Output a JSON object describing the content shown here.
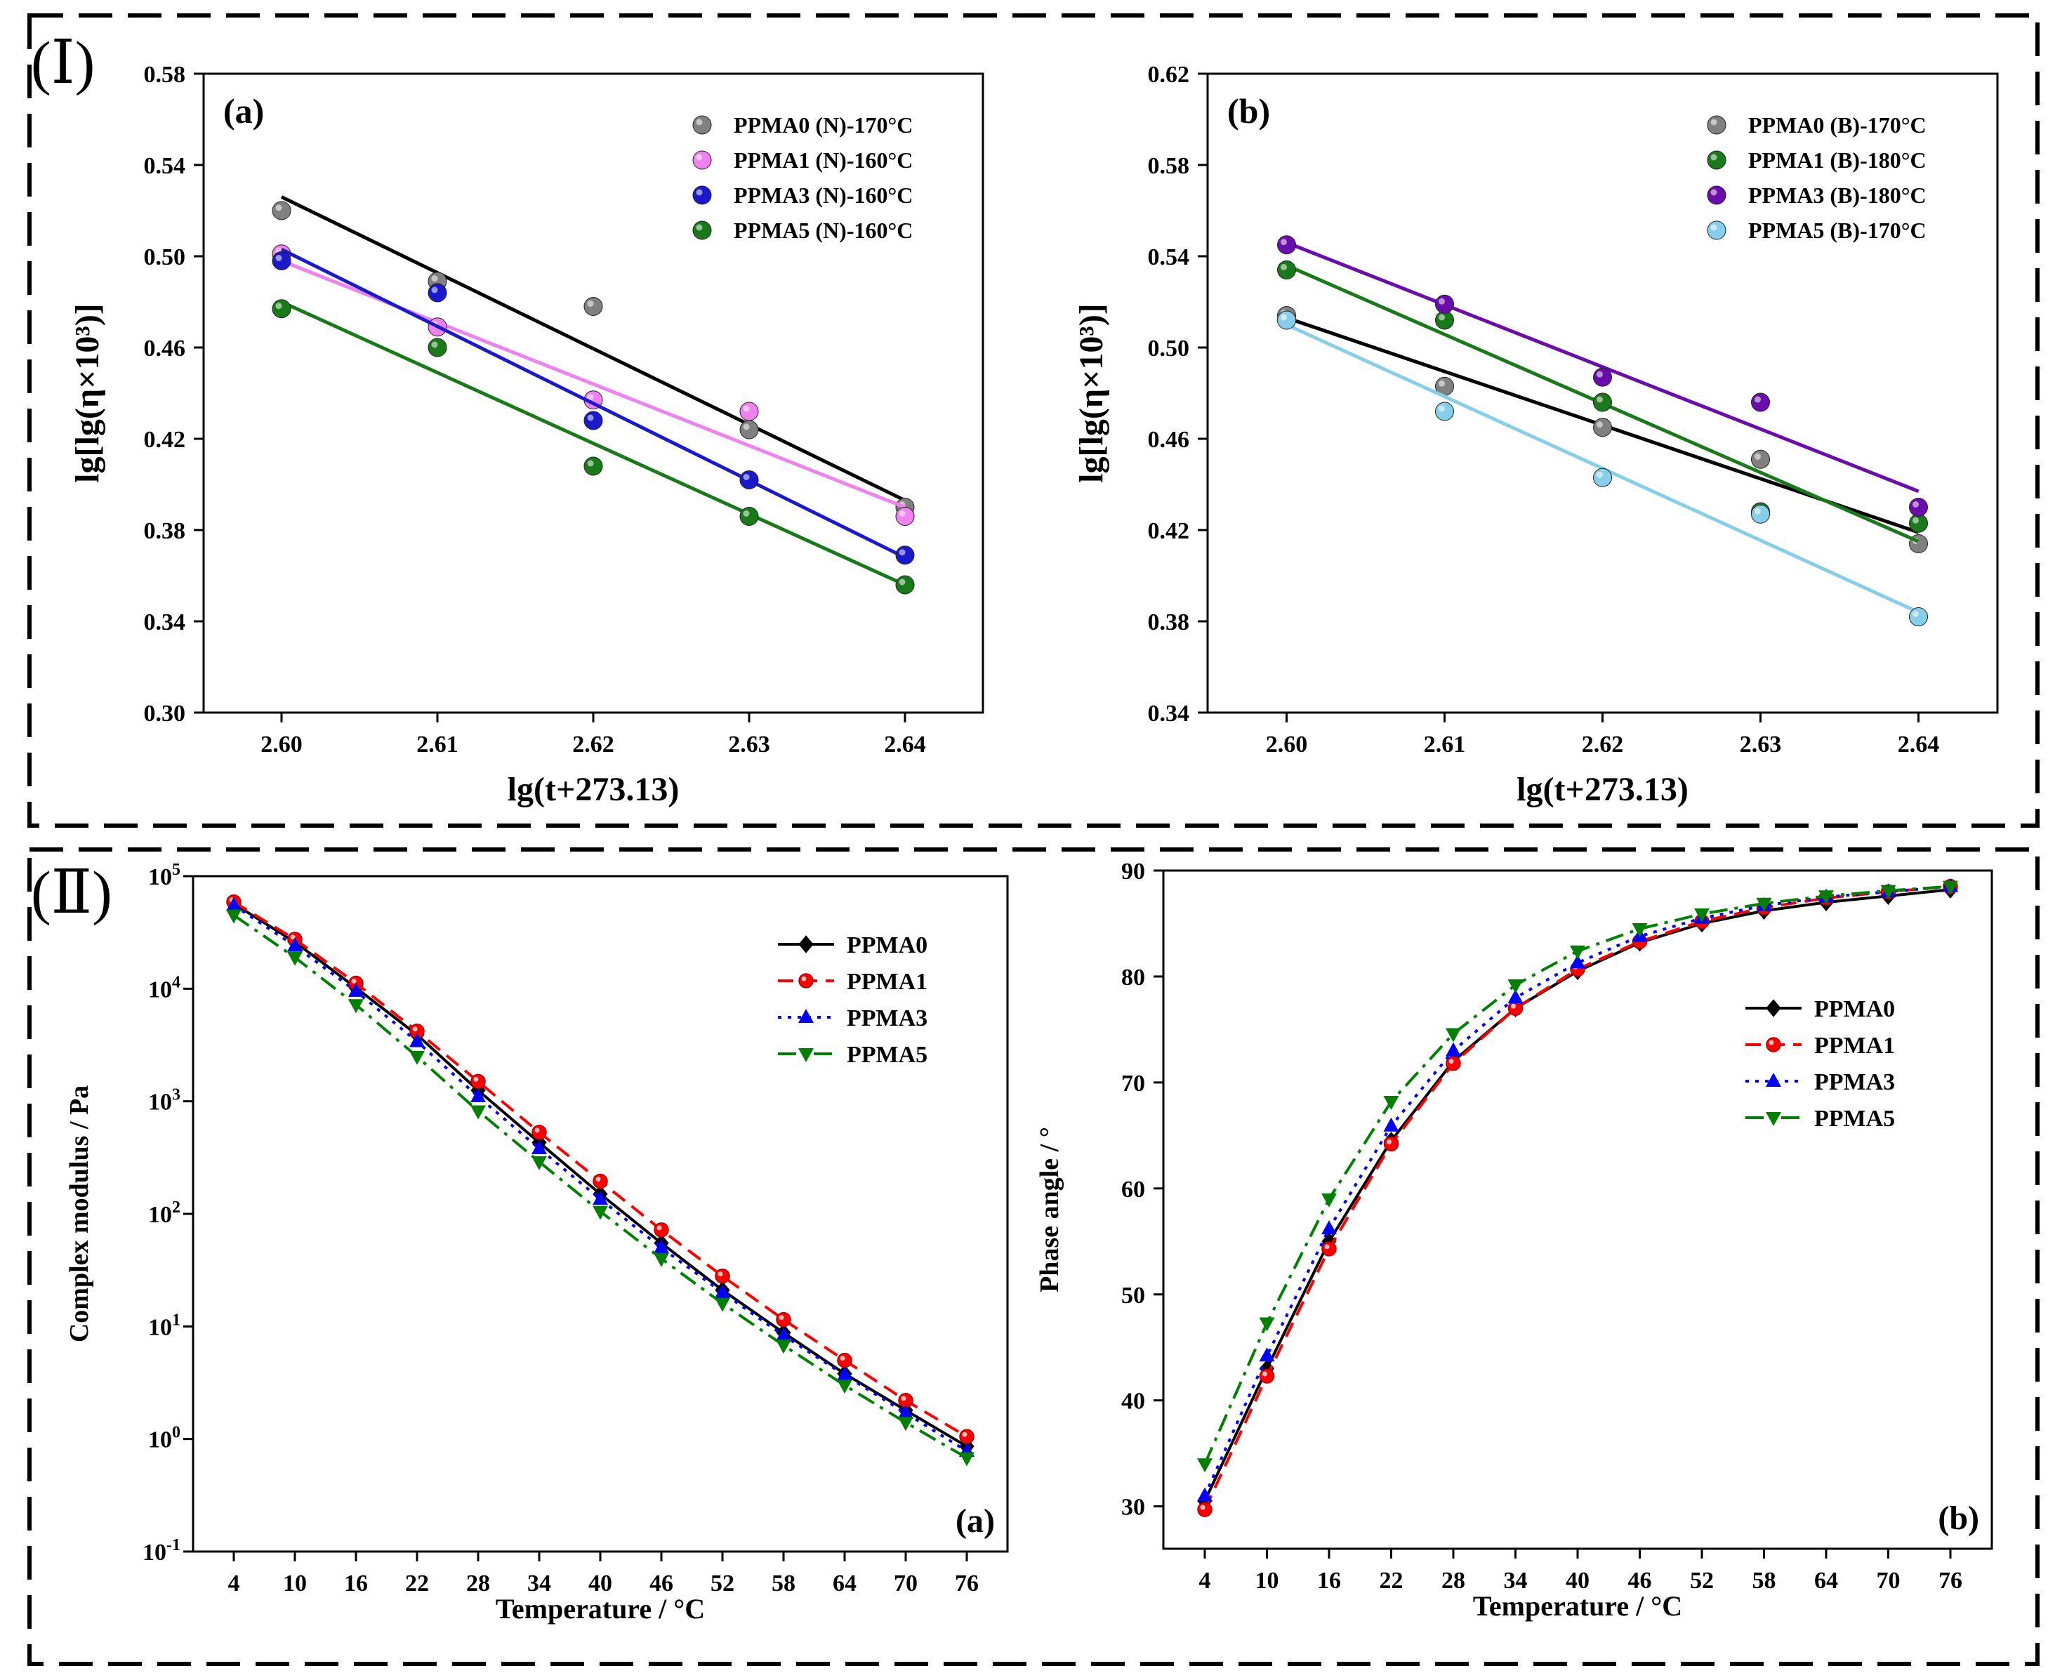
{
  "sections": [
    {
      "label": "(Ⅰ)"
    },
    {
      "label": "(Ⅱ)"
    }
  ],
  "colors": {
    "PPMA0": "#000000",
    "PPMA1": "#ff0000",
    "PPMA3": "#0000ff",
    "PPMA5": "#008000"
  },
  "chart_data": [
    {
      "id": "Ia",
      "type": "scatter",
      "panel_label": "(a)",
      "xlabel": "lg(t+273.13)",
      "ylabel": "lg[lg(η×10³)]",
      "xlim": [
        2.595,
        2.645
      ],
      "ylim": [
        0.3,
        0.58
      ],
      "xticks": [
        2.6,
        2.61,
        2.62,
        2.63,
        2.64
      ],
      "yticks": [
        0.3,
        0.34,
        0.38,
        0.42,
        0.46,
        0.5,
        0.54,
        0.58
      ],
      "x_decimals": 2,
      "y_decimals": 2,
      "legend_position": "top-right",
      "series": [
        {
          "name": "PPMA0 (N)-170°C",
          "color": "#808080",
          "line_color": "#000000",
          "x": [
            2.6,
            2.61,
            2.62,
            2.63,
            2.64
          ],
          "y": [
            0.52,
            0.489,
            0.478,
            0.424,
            0.39
          ],
          "fit": [
            [
              2.6,
              0.526
            ],
            [
              2.64,
              0.393
            ]
          ]
        },
        {
          "name": "PPMA1 (N)-160°C",
          "color": "#ee82ee",
          "line_color": "#ee82ee",
          "x": [
            2.6,
            2.61,
            2.62,
            2.63,
            2.64
          ],
          "y": [
            0.501,
            0.469,
            0.437,
            0.432,
            0.386
          ],
          "fit": [
            [
              2.6,
              0.498
            ],
            [
              2.64,
              0.39
            ]
          ]
        },
        {
          "name": "PPMA3 (N)-160°C",
          "color": "#1a1acc",
          "line_color": "#1a1acc",
          "x": [
            2.6,
            2.61,
            2.62,
            2.63,
            2.64
          ],
          "y": [
            0.498,
            0.484,
            0.428,
            0.402,
            0.369
          ],
          "fit": [
            [
              2.6,
              0.503
            ],
            [
              2.64,
              0.368
            ]
          ]
        },
        {
          "name": "PPMA5 (N)-160°C",
          "color": "#1a7a1a",
          "line_color": "#1a7a1a",
          "x": [
            2.6,
            2.61,
            2.62,
            2.63,
            2.64
          ],
          "y": [
            0.477,
            0.46,
            0.408,
            0.386,
            0.356
          ],
          "fit": [
            [
              2.6,
              0.48
            ],
            [
              2.64,
              0.356
            ]
          ]
        }
      ]
    },
    {
      "id": "Ib",
      "type": "scatter",
      "panel_label": "(b)",
      "xlabel": "lg(t+273.13)",
      "ylabel": "lg[lg(η×10³)]",
      "xlim": [
        2.595,
        2.645
      ],
      "ylim": [
        0.34,
        0.62
      ],
      "xticks": [
        2.6,
        2.61,
        2.62,
        2.63,
        2.64
      ],
      "yticks": [
        0.34,
        0.38,
        0.42,
        0.46,
        0.5,
        0.54,
        0.58,
        0.62
      ],
      "x_decimals": 2,
      "y_decimals": 2,
      "legend_position": "top-right",
      "series": [
        {
          "name": "PPMA0 (B)-170°C",
          "color": "#808080",
          "line_color": "#000000",
          "x": [
            2.6,
            2.61,
            2.62,
            2.63,
            2.64
          ],
          "y": [
            0.514,
            0.483,
            0.465,
            0.451,
            0.414
          ],
          "fit": [
            [
              2.6,
              0.513
            ],
            [
              2.64,
              0.419
            ]
          ]
        },
        {
          "name": "PPMA1 (B)-180°C",
          "color": "#1a7a1a",
          "line_color": "#1a7a1a",
          "x": [
            2.6,
            2.61,
            2.62,
            2.63,
            2.64
          ],
          "y": [
            0.534,
            0.512,
            0.476,
            0.428,
            0.423
          ],
          "fit": [
            [
              2.6,
              0.536
            ],
            [
              2.64,
              0.415
            ]
          ]
        },
        {
          "name": "PPMA3 (B)-180°C",
          "color": "#6a0dad",
          "line_color": "#6a0dad",
          "x": [
            2.6,
            2.61,
            2.62,
            2.63,
            2.64
          ],
          "y": [
            0.545,
            0.519,
            0.487,
            0.476,
            0.43
          ],
          "fit": [
            [
              2.6,
              0.546
            ],
            [
              2.64,
              0.437
            ]
          ]
        },
        {
          "name": "PPMA5 (B)-170°C",
          "color": "#87ceeb",
          "line_color": "#87ceeb",
          "x": [
            2.6,
            2.61,
            2.62,
            2.63,
            2.64
          ],
          "y": [
            0.512,
            0.472,
            0.443,
            0.427,
            0.382
          ],
          "fit": [
            [
              2.6,
              0.51
            ],
            [
              2.64,
              0.384
            ]
          ]
        }
      ]
    },
    {
      "id": "IIa",
      "type": "line",
      "panel_label": "(a)",
      "xlabel": "Temperature / °C",
      "ylabel": "Complex modulus / Pa",
      "y_scale": "log",
      "xlim": [
        0,
        80
      ],
      "ylim": [
        -1,
        5
      ],
      "xticks": [
        4,
        10,
        16,
        22,
        28,
        34,
        40,
        46,
        52,
        58,
        64,
        70,
        76
      ],
      "yticks": [
        -1,
        0,
        1,
        2,
        3,
        4,
        5
      ],
      "ytick_labels": [
        "10",
        "10",
        "10",
        "10",
        "10",
        "10",
        "10"
      ],
      "ytick_exponents": [
        "-1",
        "0",
        "1",
        "2",
        "3",
        "4",
        "5"
      ],
      "x_decimals": 0,
      "legend_position": "top-right",
      "x": [
        4,
        10,
        16,
        22,
        28,
        34,
        40,
        46,
        52,
        58,
        64,
        70,
        76
      ],
      "series": [
        {
          "name": "PPMA0",
          "marker": "diamond",
          "dash": "solid",
          "values": [
            57000,
            26000,
            10200,
            3900,
            1250,
            430,
            150,
            55,
            21,
            8.8,
            3.8,
            1.8,
            0.86
          ]
        },
        {
          "name": "PPMA1",
          "marker": "circle",
          "dash": "dashed",
          "values": [
            59000,
            27500,
            11200,
            4200,
            1500,
            530,
            195,
            72,
            28,
            11.5,
            5.0,
            2.2,
            1.05
          ]
        },
        {
          "name": "PPMA3",
          "marker": "triangle-up",
          "dash": "dotted",
          "values": [
            55000,
            24000,
            9500,
            3400,
            1100,
            380,
            135,
            50,
            20,
            8.3,
            3.7,
            1.7,
            0.78
          ]
        },
        {
          "name": "PPMA5",
          "marker": "triangle-down",
          "dash": "dashdot",
          "values": [
            45000,
            19000,
            7200,
            2500,
            820,
            290,
            105,
            40,
            16,
            6.8,
            3.0,
            1.4,
            0.68
          ]
        }
      ]
    },
    {
      "id": "IIb",
      "type": "line",
      "panel_label": "(b)",
      "xlabel": "Temperature / °C",
      "ylabel": "Phase angle / °",
      "xlim": [
        0,
        80
      ],
      "ylim": [
        26,
        90
      ],
      "xticks": [
        4,
        10,
        16,
        22,
        28,
        34,
        40,
        46,
        52,
        58,
        64,
        70,
        76
      ],
      "yticks": [
        30,
        40,
        50,
        60,
        70,
        80,
        90
      ],
      "x_decimals": 0,
      "y_decimals": 0,
      "legend_position": "center-right",
      "x": [
        4,
        10,
        16,
        22,
        28,
        34,
        40,
        46,
        52,
        58,
        64,
        70,
        76
      ],
      "series": [
        {
          "name": "PPMA0",
          "marker": "diamond",
          "dash": "solid",
          "values": [
            30.5,
            43.0,
            55.0,
            64.5,
            72.0,
            77.0,
            80.5,
            83.2,
            85.0,
            86.2,
            87.0,
            87.6,
            88.2
          ]
        },
        {
          "name": "PPMA1",
          "marker": "circle",
          "dash": "dashed",
          "values": [
            29.7,
            42.3,
            54.3,
            64.2,
            71.8,
            77.0,
            80.7,
            83.3,
            85.2,
            86.5,
            87.4,
            88.0,
            88.5
          ]
        },
        {
          "name": "PPMA3",
          "marker": "triangle-up",
          "dash": "dotted",
          "values": [
            31.0,
            44.2,
            56.2,
            65.9,
            73.0,
            78.0,
            81.3,
            83.8,
            85.5,
            86.7,
            87.5,
            88.0,
            88.5
          ]
        },
        {
          "name": "PPMA5",
          "marker": "triangle-down",
          "dash": "dashdot",
          "values": [
            34.0,
            47.3,
            59.0,
            68.2,
            74.6,
            79.2,
            82.4,
            84.5,
            85.9,
            86.9,
            87.6,
            88.1,
            88.5
          ]
        }
      ]
    }
  ]
}
